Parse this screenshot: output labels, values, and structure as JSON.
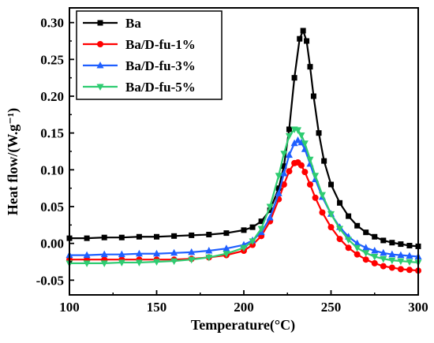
{
  "chart_data": {
    "type": "line",
    "xlabel": "Temperature(°C)",
    "ylabel": "Heat flow/(W.g⁻¹)",
    "xlim": [
      100,
      300
    ],
    "ylim": [
      -0.07,
      0.32
    ],
    "x_ticks": [
      "100",
      "150",
      "200",
      "250",
      "300"
    ],
    "y_ticks": [
      "-0.05",
      "0.00",
      "0.05",
      "0.10",
      "0.15",
      "0.20",
      "0.25",
      "0.30"
    ],
    "grid": false,
    "legend_position": "top-left",
    "series": [
      {
        "name": "Ba",
        "color": "#000000",
        "marker": "square",
        "x": [
          100,
          110,
          120,
          130,
          140,
          150,
          160,
          170,
          180,
          190,
          200,
          205,
          210,
          215,
          220,
          223,
          226,
          229,
          232,
          234,
          236,
          238,
          240,
          243,
          246,
          250,
          255,
          260,
          265,
          270,
          275,
          280,
          285,
          290,
          295,
          300
        ],
        "y": [
          0.007,
          0.007,
          0.008,
          0.008,
          0.009,
          0.009,
          0.01,
          0.011,
          0.012,
          0.014,
          0.018,
          0.022,
          0.03,
          0.045,
          0.075,
          0.105,
          0.155,
          0.225,
          0.278,
          0.289,
          0.275,
          0.24,
          0.2,
          0.15,
          0.112,
          0.08,
          0.055,
          0.037,
          0.024,
          0.015,
          0.009,
          0.004,
          0.001,
          -0.001,
          -0.003,
          -0.004
        ]
      },
      {
        "name": "Ba/D-fu-1%",
        "color": "#ff0000",
        "marker": "circle",
        "x": [
          100,
          110,
          120,
          130,
          140,
          150,
          160,
          170,
          180,
          190,
          200,
          205,
          210,
          215,
          220,
          223,
          226,
          229,
          231,
          233,
          235,
          238,
          241,
          245,
          250,
          255,
          260,
          265,
          270,
          275,
          280,
          285,
          290,
          295,
          300
        ],
        "y": [
          -0.022,
          -0.022,
          -0.022,
          -0.022,
          -0.022,
          -0.022,
          -0.022,
          -0.021,
          -0.019,
          -0.016,
          -0.01,
          -0.002,
          0.01,
          0.03,
          0.06,
          0.08,
          0.098,
          0.109,
          0.11,
          0.106,
          0.097,
          0.08,
          0.062,
          0.042,
          0.022,
          0.006,
          -0.006,
          -0.015,
          -0.022,
          -0.027,
          -0.031,
          -0.033,
          -0.035,
          -0.036,
          -0.037
        ]
      },
      {
        "name": "Ba/D-fu-3%",
        "color": "#1f5fff",
        "marker": "triangle-up",
        "x": [
          100,
          110,
          120,
          130,
          140,
          150,
          160,
          170,
          180,
          190,
          200,
          205,
          210,
          215,
          220,
          223,
          226,
          229,
          231,
          233,
          235,
          238,
          241,
          245,
          250,
          255,
          260,
          265,
          270,
          275,
          280,
          285,
          290,
          295,
          300
        ],
        "y": [
          -0.016,
          -0.016,
          -0.015,
          -0.015,
          -0.014,
          -0.014,
          -0.013,
          -0.012,
          -0.01,
          -0.007,
          -0.002,
          0.004,
          0.015,
          0.035,
          0.068,
          0.095,
          0.12,
          0.136,
          0.14,
          0.137,
          0.128,
          0.108,
          0.087,
          0.063,
          0.04,
          0.022,
          0.009,
          0.0,
          -0.006,
          -0.01,
          -0.013,
          -0.015,
          -0.016,
          -0.017,
          -0.018
        ]
      },
      {
        "name": "Ba/D-fu-5%",
        "color": "#2ecc71",
        "marker": "triangle-down",
        "x": [
          100,
          110,
          120,
          130,
          140,
          150,
          160,
          170,
          180,
          190,
          200,
          205,
          210,
          215,
          220,
          223,
          226,
          229,
          231,
          233,
          235,
          238,
          241,
          245,
          250,
          255,
          260,
          265,
          270,
          275,
          280,
          285,
          290,
          295,
          300
        ],
        "y": [
          -0.027,
          -0.027,
          -0.027,
          -0.026,
          -0.026,
          -0.025,
          -0.024,
          -0.022,
          -0.019,
          -0.014,
          -0.006,
          0.003,
          0.02,
          0.05,
          0.092,
          0.122,
          0.146,
          0.155,
          0.154,
          0.147,
          0.136,
          0.114,
          0.092,
          0.066,
          0.04,
          0.02,
          0.005,
          -0.006,
          -0.013,
          -0.018,
          -0.021,
          -0.023,
          -0.024,
          -0.025,
          -0.026
        ]
      }
    ]
  }
}
